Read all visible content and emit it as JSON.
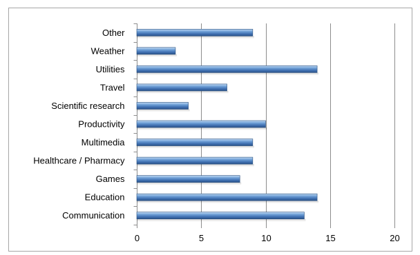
{
  "chart_data": {
    "type": "bar",
    "orientation": "horizontal",
    "categories": [
      "Communication",
      "Education",
      "Games",
      "Healthcare / Pharmacy",
      "Multimedia",
      "Productivity",
      "Scientific research",
      "Travel",
      "Utilities",
      "Weather",
      "Other"
    ],
    "values": [
      13,
      14,
      8,
      9,
      9,
      10,
      4,
      7,
      14,
      3,
      9
    ],
    "xlim": [
      0,
      20
    ],
    "xticks": [
      0,
      5,
      10,
      15,
      20
    ],
    "grid": "vertical",
    "legend": "none",
    "title": "",
    "xlabel": "",
    "ylabel": "",
    "colors": {
      "bar_light": "#9dc3ee",
      "bar_mid": "#4f81bd",
      "bar_dark": "#274e7d",
      "grid": "#8c8c8c",
      "frame": "#a6a6a6"
    }
  }
}
